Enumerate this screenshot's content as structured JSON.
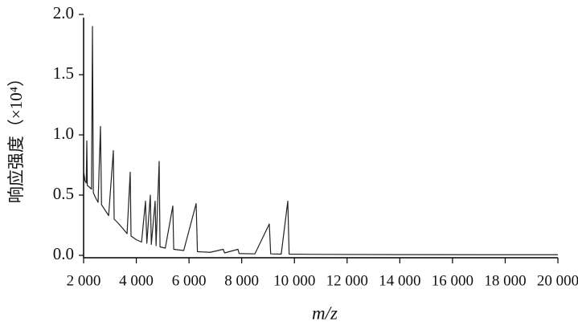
{
  "chart_data": {
    "type": "line",
    "ylabel": "响应强度（×10⁴）",
    "xlabel": "m/z",
    "color": "#222222",
    "xlim": [
      2000,
      20000
    ],
    "ylim": [
      0,
      2.0
    ],
    "xticks": [
      {
        "value": 2000,
        "label": "2 000"
      },
      {
        "value": 4000,
        "label": "4 000"
      },
      {
        "value": 6000,
        "label": "6 000"
      },
      {
        "value": 8000,
        "label": "8 000"
      },
      {
        "value": 10000,
        "label": "10 000"
      },
      {
        "value": 12000,
        "label": "12 000"
      },
      {
        "value": 14000,
        "label": "14 000"
      },
      {
        "value": 16000,
        "label": "16 000"
      },
      {
        "value": 18000,
        "label": "18 000"
      },
      {
        "value": 20000,
        "label": "20 000"
      }
    ],
    "yticks": [
      {
        "value": 0,
        "label": "0.0"
      },
      {
        "value": 0.5,
        "label": "0.5"
      },
      {
        "value": 1.0,
        "label": "1.0"
      },
      {
        "value": 1.5,
        "label": "1.5"
      },
      {
        "value": 2.0,
        "label": "2.0"
      }
    ],
    "x": [
      2000,
      2050,
      2100,
      2122,
      2140,
      2200,
      2300,
      2336,
      2370,
      2450,
      2550,
      2640,
      2680,
      2800,
      2950,
      3129,
      3160,
      3300,
      3500,
      3650,
      3769,
      3800,
      4000,
      4200,
      4349,
      4400,
      4532,
      4570,
      4715,
      4750,
      4868,
      4900,
      5100,
      5386,
      5420,
      5800,
      6271,
      6320,
      6800,
      7300,
      7350,
      7858,
      7900,
      8500,
      9047,
      9100,
      9500,
      9749,
      9800,
      11000,
      14000,
      17000,
      20000
    ],
    "values": [
      0.7,
      0.62,
      0.6,
      0.95,
      0.58,
      0.57,
      0.55,
      1.9,
      0.52,
      0.48,
      0.44,
      1.07,
      0.42,
      0.38,
      0.33,
      0.87,
      0.3,
      0.27,
      0.22,
      0.18,
      0.69,
      0.16,
      0.13,
      0.11,
      0.45,
      0.1,
      0.5,
      0.09,
      0.45,
      0.08,
      0.78,
      0.07,
      0.06,
      0.41,
      0.05,
      0.04,
      0.43,
      0.03,
      0.025,
      0.05,
      0.02,
      0.05,
      0.015,
      0.012,
      0.26,
      0.012,
      0.01,
      0.45,
      0.01,
      0.008,
      0.006,
      0.005,
      0.005
    ]
  }
}
